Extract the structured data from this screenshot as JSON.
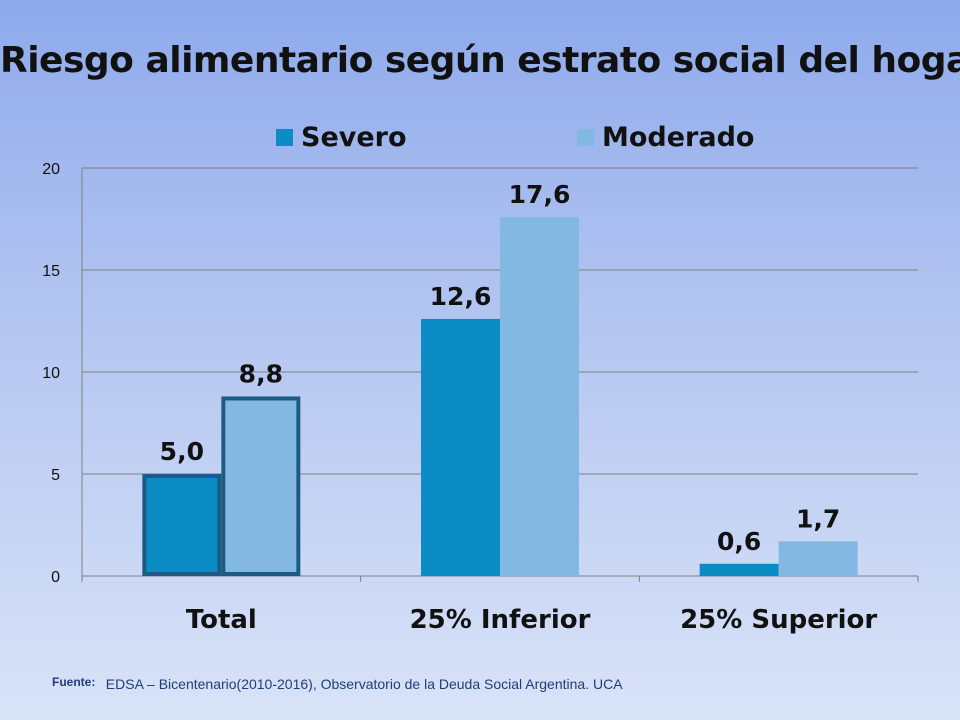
{
  "chart_data": {
    "type": "bar",
    "title": "Riesgo alimentario según estrato social del hogar",
    "categories": [
      "Total",
      "25% Inferior",
      "25% Superior"
    ],
    "series": [
      {
        "name": "Severo",
        "values": [
          5.0,
          12.6,
          0.6
        ],
        "labels": [
          "5,0",
          "12,6",
          "0,6"
        ],
        "color": "#0b8cc4"
      },
      {
        "name": "Moderado",
        "values": [
          8.8,
          17.6,
          1.7
        ],
        "labels": [
          "8,8",
          "17,6",
          "1,7"
        ],
        "color": "#82b8e2"
      }
    ],
    "ylim": [
      0,
      20
    ],
    "yticks": [
      0,
      5,
      10,
      15,
      20
    ],
    "grid": true,
    "legend_position": "top",
    "highlighted_category": "Total",
    "highlight_border_color": "#1e5b82"
  },
  "source": {
    "label": "Fuente:",
    "text": "EDSA – Bicentenario(2010-2016), Observatorio de la Deuda Social Argentina. UCA"
  }
}
